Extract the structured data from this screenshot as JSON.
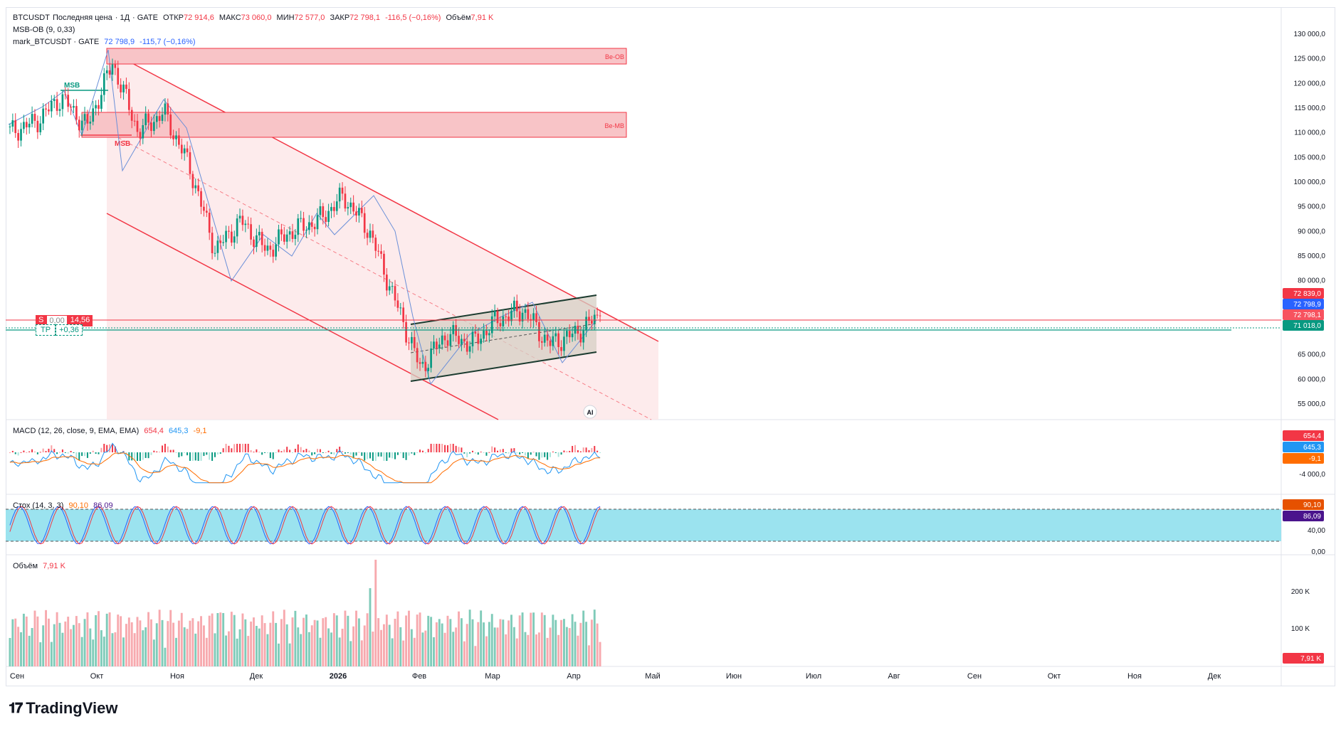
{
  "header": {
    "symbol": "BTCUSDT",
    "price_type": "Последняя цена",
    "interval": "1Д",
    "exchange": "GATE",
    "open_label": "ОТКР",
    "open": "72 914,6",
    "high_label": "МАКС",
    "high": "73 060,0",
    "low_label": "МИН",
    "low": "72 577,0",
    "close_label": "ЗАКР",
    "close": "72 798,1",
    "change": "-116,5 (−0,16%)",
    "volume_label": "Объём",
    "volume": "7,91 K"
  },
  "indicators": {
    "msb_ob": "MSB-OB (9, 0,33)",
    "mark": "mark_BTCUSDT · GATE",
    "mark_value": "72 798,9",
    "mark_change": "-115,7 (−0,16%)"
  },
  "trade_labels": {
    "stop": "S",
    "stop_value": "0,00",
    "stop_pnl": "14,56",
    "tp": "TP",
    "tp_value": "+0,36"
  },
  "annotations": {
    "msb_top": "MSB",
    "msb_bottom": "MSB",
    "be_ob": "Be-OB",
    "be_mb": "Be-MB",
    "ai": "AI"
  },
  "price_axis": {
    "ticks": [
      "130 000,0",
      "125 000,0",
      "120 000,0",
      "115 000,0",
      "110 000,0",
      "105 000,0",
      "100 000,0",
      "95 000,0",
      "90 000,0",
      "85 000,0",
      "80 000,0",
      "65 000,0",
      "60 000,0",
      "55 000,0"
    ],
    "labels": [
      {
        "text": "72 839,0",
        "color": "#f23645"
      },
      {
        "text": "72 798,9",
        "color": "#2962ff"
      },
      {
        "text": "72 798,1",
        "color": "#f7525f"
      },
      {
        "text": "71 018,0",
        "color": "#089981"
      }
    ]
  },
  "macd": {
    "label": "MACD (12, 26, close, 9, EMA, EMA)",
    "hist": "654,4",
    "macd": "645,3",
    "signal": "-9,1",
    "axis": "-4 000,0",
    "colors": {
      "hist": "#f23645",
      "macd": "#2962ff",
      "signal": "#ff6d00"
    }
  },
  "stoch": {
    "label": "Стох (14, 3, 3)",
    "k": "90,10",
    "d": "86,09",
    "axis": [
      "40,00",
      "0,00"
    ],
    "colors": {
      "k": "#ff6d00",
      "d": "#4a148c"
    }
  },
  "volume_pane": {
    "label": "Объём",
    "value": "7,91 K",
    "axis": [
      "200 K",
      "100 K"
    ]
  },
  "time_axis": [
    "Сен",
    "Окт",
    "Ноя",
    "Дек",
    "2026",
    "Фев",
    "Мар",
    "Апр",
    "Май",
    "Июн",
    "Июл",
    "Авг",
    "Сен",
    "Окт",
    "Ноя",
    "Дек"
  ],
  "branding": "TradingView",
  "chart_data": {
    "type": "candlestick",
    "series_name": "BTCUSDT",
    "x_range": [
      "Сен",
      "Апр"
    ],
    "ylim": [
      54000,
      131000
    ],
    "close_path": [
      {
        "x": "Сен",
        "y": 110000
      },
      {
        "x": "Сен",
        "y": 112000
      },
      {
        "x": "Сен",
        "y": 117000
      },
      {
        "x": "Окт",
        "y": 111000
      },
      {
        "x": "Окт",
        "y": 124000
      },
      {
        "x": "Окт",
        "y": 110000
      },
      {
        "x": "Ноя",
        "y": 114000
      },
      {
        "x": "Ноя",
        "y": 103000
      },
      {
        "x": "Ноя",
        "y": 86000
      },
      {
        "x": "Дек",
        "y": 92000
      },
      {
        "x": "Дек",
        "y": 86000
      },
      {
        "x": "Дек",
        "y": 90000
      },
      {
        "x": "2026",
        "y": 92000
      },
      {
        "x": "2026",
        "y": 97000
      },
      {
        "x": "2026",
        "y": 90000
      },
      {
        "x": "Фев",
        "y": 76000
      },
      {
        "x": "Фев",
        "y": 62000
      },
      {
        "x": "Фев",
        "y": 69000
      },
      {
        "x": "Мар",
        "y": 67000
      },
      {
        "x": "Мар",
        "y": 72000
      },
      {
        "x": "Мар",
        "y": 74000
      },
      {
        "x": "Апр",
        "y": 67000
      },
      {
        "x": "Апр",
        "y": 69000
      },
      {
        "x": "Апр",
        "y": 72798
      }
    ],
    "last_close": 72798.1,
    "horizontal_lines": [
      72839,
      71018
    ],
    "zones": [
      {
        "name": "Be-OB",
        "from": 123500,
        "to": 126000
      },
      {
        "name": "Be-MB",
        "from": 108500,
        "to": 113000
      }
    ]
  }
}
